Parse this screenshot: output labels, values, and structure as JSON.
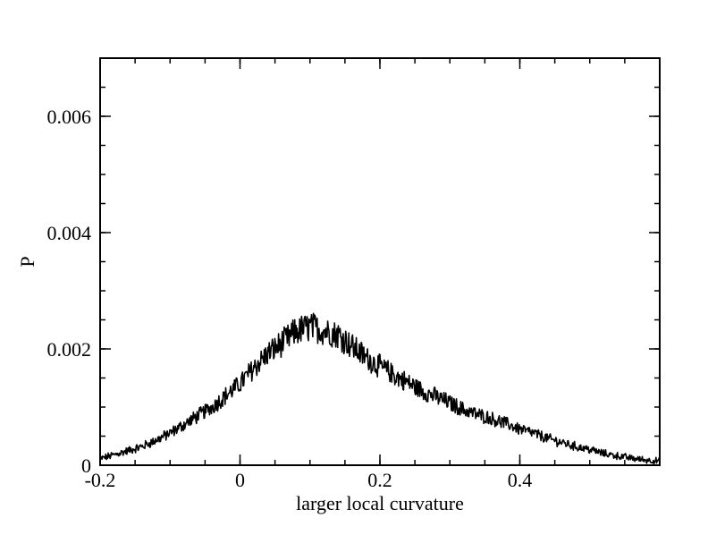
{
  "chart_data": {
    "type": "line",
    "title": "",
    "xlabel": "larger local curvature",
    "ylabel": "P",
    "xlim": [
      -0.2,
      0.6
    ],
    "ylim": [
      0,
      0.007
    ],
    "x_ticks": [
      {
        "value": -0.2,
        "label": "-0.2"
      },
      {
        "value": 0,
        "label": "0"
      },
      {
        "value": 0.2,
        "label": "0.2"
      },
      {
        "value": 0.4,
        "label": "0.4"
      }
    ],
    "y_ticks": [
      {
        "value": 0,
        "label": "0"
      },
      {
        "value": 0.002,
        "label": "0.002"
      },
      {
        "value": 0.004,
        "label": "0.004"
      },
      {
        "value": 0.006,
        "label": "0.006"
      }
    ],
    "x_minor_step": 0.05,
    "y_minor_step": 0.0005,
    "grid": false,
    "legend": "none",
    "line_color": "#000000",
    "series": [
      {
        "x": [
          -0.2,
          -0.18,
          -0.16,
          -0.14,
          -0.12,
          -0.1,
          -0.08,
          -0.06,
          -0.04,
          -0.02,
          0.0,
          0.02,
          0.04,
          0.06,
          0.08,
          0.1,
          0.12,
          0.14,
          0.16,
          0.18,
          0.2,
          0.22,
          0.24,
          0.26,
          0.28,
          0.3,
          0.32,
          0.34,
          0.36,
          0.38,
          0.4,
          0.42,
          0.44,
          0.46,
          0.48,
          0.5,
          0.52,
          0.54,
          0.56,
          0.58,
          0.6
        ],
        "y": [
          0.00011,
          0.00018,
          0.00025,
          0.00032,
          0.00043,
          0.00055,
          0.0007,
          0.00085,
          0.001,
          0.0012,
          0.0014,
          0.00168,
          0.00192,
          0.0021,
          0.0023,
          0.00238,
          0.00232,
          0.00225,
          0.00205,
          0.00185,
          0.0017,
          0.00155,
          0.00142,
          0.00128,
          0.00118,
          0.00107,
          0.00095,
          0.00087,
          0.0008,
          0.00072,
          0.00062,
          0.00055,
          0.00046,
          0.00039,
          0.00032,
          0.00027,
          0.0002,
          0.00016,
          0.00012,
          9e-05,
          7e-05
        ]
      }
    ]
  }
}
